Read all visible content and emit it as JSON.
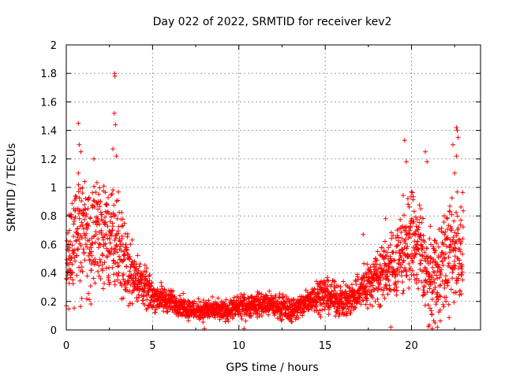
{
  "chart_data": {
    "type": "scatter",
    "title": "Day 022 of 2022, SRMTID for receiver kev2",
    "xlabel": "GPS time / hours",
    "ylabel": "SRMTID / TECUs",
    "xlim": [
      0,
      24
    ],
    "ylim": [
      0,
      2
    ],
    "xticks": [
      0,
      5,
      10,
      15,
      20
    ],
    "yticks": [
      0,
      0.2,
      0.4,
      0.6,
      0.8,
      1,
      1.2,
      1.4,
      1.6,
      1.8,
      2
    ],
    "grid": true,
    "marker": "+",
    "series_color": "#ff0000",
    "trend_x": [
      0,
      0.5,
      1,
      1.5,
      2,
      2.5,
      3,
      3.5,
      4,
      4.5,
      5,
      5.5,
      6,
      6.5,
      7,
      7.5,
      8,
      8.5,
      9,
      9.5,
      10,
      10.5,
      11,
      11.5,
      12,
      12.5,
      13,
      13.5,
      14,
      14.5,
      15,
      15.5,
      16,
      16.5,
      17,
      17.5,
      18,
      18.5,
      19,
      19.5,
      20,
      20.5,
      21,
      21.5,
      22,
      22.5,
      23
    ],
    "trend_y": [
      0.45,
      0.65,
      0.72,
      0.62,
      0.7,
      0.62,
      0.6,
      0.45,
      0.38,
      0.3,
      0.24,
      0.22,
      0.2,
      0.18,
      0.15,
      0.14,
      0.14,
      0.14,
      0.13,
      0.14,
      0.16,
      0.17,
      0.18,
      0.18,
      0.17,
      0.16,
      0.14,
      0.16,
      0.2,
      0.25,
      0.25,
      0.22,
      0.2,
      0.22,
      0.28,
      0.32,
      0.38,
      0.42,
      0.45,
      0.55,
      0.65,
      0.55,
      0.35,
      0.42,
      0.5,
      0.55,
      0.6
    ],
    "spread_y": [
      0.25,
      0.35,
      0.4,
      0.35,
      0.35,
      0.3,
      0.3,
      0.22,
      0.15,
      0.12,
      0.09,
      0.08,
      0.07,
      0.06,
      0.06,
      0.06,
      0.06,
      0.06,
      0.06,
      0.06,
      0.06,
      0.07,
      0.07,
      0.07,
      0.07,
      0.07,
      0.07,
      0.07,
      0.08,
      0.1,
      0.1,
      0.09,
      0.09,
      0.1,
      0.12,
      0.14,
      0.16,
      0.18,
      0.2,
      0.25,
      0.3,
      0.3,
      0.25,
      0.28,
      0.3,
      0.35,
      0.3
    ],
    "points_per_hour": 110,
    "x_start": 0,
    "x_end": 23,
    "outliers": [
      {
        "x": 2.8,
        "y": 1.8
      },
      {
        "x": 2.82,
        "y": 1.78
      },
      {
        "x": 2.78,
        "y": 1.52
      },
      {
        "x": 2.85,
        "y": 1.44
      },
      {
        "x": 0.7,
        "y": 1.45
      },
      {
        "x": 0.75,
        "y": 1.3
      },
      {
        "x": 0.85,
        "y": 1.25
      },
      {
        "x": 0.7,
        "y": 1.1
      },
      {
        "x": 1.6,
        "y": 1.2
      },
      {
        "x": 2.7,
        "y": 1.27
      },
      {
        "x": 2.9,
        "y": 1.22
      },
      {
        "x": 19.6,
        "y": 1.33
      },
      {
        "x": 19.7,
        "y": 1.18
      },
      {
        "x": 20.8,
        "y": 1.25
      },
      {
        "x": 20.9,
        "y": 1.18
      },
      {
        "x": 22.6,
        "y": 1.42
      },
      {
        "x": 22.65,
        "y": 1.4
      },
      {
        "x": 22.7,
        "y": 1.35
      },
      {
        "x": 22.4,
        "y": 1.3
      },
      {
        "x": 22.6,
        "y": 1.22
      },
      {
        "x": 22.5,
        "y": 1.1
      },
      {
        "x": 18.5,
        "y": 0.78
      },
      {
        "x": 17.2,
        "y": 0.67
      },
      {
        "x": 8.0,
        "y": 0.01
      },
      {
        "x": 10.3,
        "y": 0.01
      },
      {
        "x": 18.8,
        "y": 0.02
      },
      {
        "x": 21.2,
        "y": 0.01
      },
      {
        "x": 21.5,
        "y": 0.02
      }
    ]
  }
}
